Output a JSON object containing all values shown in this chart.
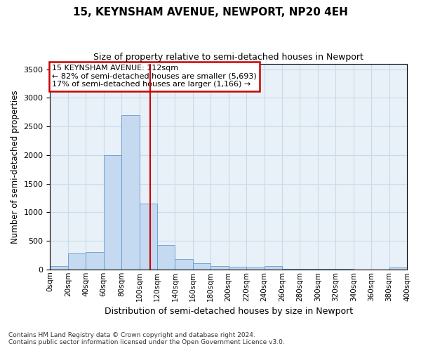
{
  "title": "15, KEYNSHAM AVENUE, NEWPORT, NP20 4EH",
  "subtitle": "Size of property relative to semi-detached houses in Newport",
  "xlabel": "Distribution of semi-detached houses by size in Newport",
  "ylabel": "Number of semi-detached properties",
  "footnote1": "Contains HM Land Registry data © Crown copyright and database right 2024.",
  "footnote2": "Contains public sector information licensed under the Open Government Licence v3.0.",
  "bar_color": "#c5d9f0",
  "bar_edge_color": "#6699cc",
  "grid_color": "#c8daea",
  "bg_color": "#e8f1f8",
  "vline_color": "#cc0000",
  "vline_x": 112,
  "annotation_line1": "15 KEYNSHAM AVENUE: 112sqm",
  "annotation_line2": "← 82% of semi-detached houses are smaller (5,693)",
  "annotation_line3": "17% of semi-detached houses are larger (1,166) →",
  "box_edge_color": "#cc0000",
  "bins": [
    0,
    20,
    40,
    60,
    80,
    100,
    120,
    140,
    160,
    180,
    200,
    220,
    240,
    260,
    280,
    300,
    320,
    340,
    360,
    380,
    400
  ],
  "counts": [
    60,
    280,
    300,
    2000,
    2700,
    1150,
    430,
    185,
    110,
    60,
    50,
    40,
    55,
    10,
    10,
    8,
    5,
    3,
    2,
    30
  ],
  "ylim": [
    0,
    3600
  ],
  "yticks": [
    0,
    500,
    1000,
    1500,
    2000,
    2500,
    3000,
    3500
  ]
}
